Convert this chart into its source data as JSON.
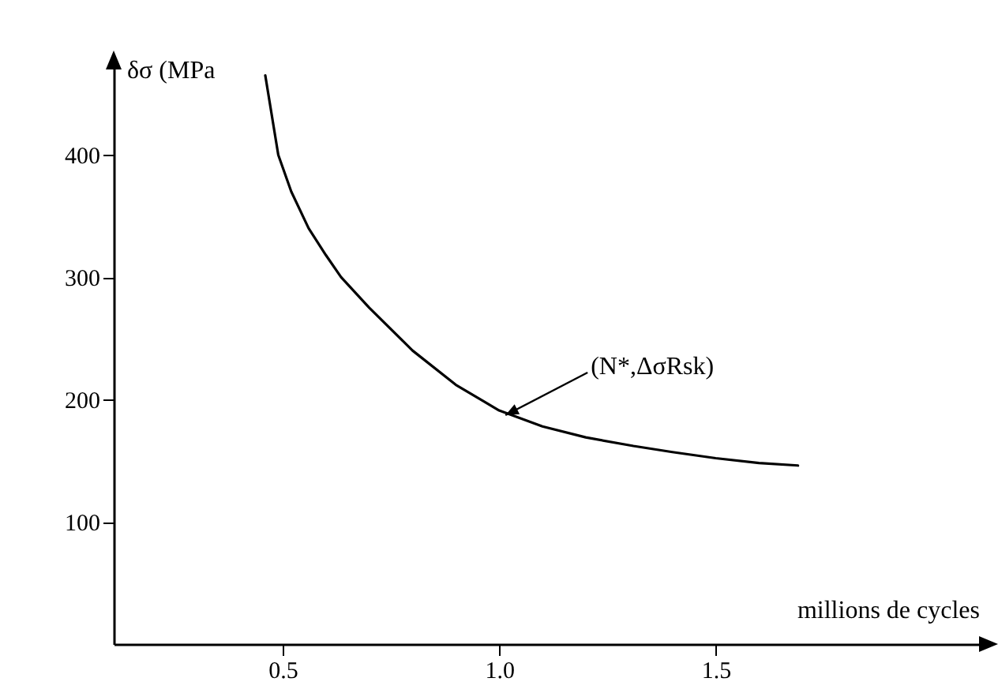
{
  "chart_data": {
    "type": "line",
    "xlabel": "millions de cycles",
    "ylabel": "δσ (MPa",
    "x": [
      0.46,
      0.49,
      0.52,
      0.56,
      0.6,
      0.635,
      0.7,
      0.8,
      0.9,
      1.0,
      1.1,
      1.2,
      1.31,
      1.4,
      1.5,
      1.6,
      1.69
    ],
    "series": [
      {
        "color": "#000000",
        "values": [
          465,
          400,
          370,
          340,
          318,
          300,
          275,
          240,
          212,
          191,
          178,
          169,
          162,
          157,
          152,
          148,
          146
        ]
      }
    ],
    "xlim": [
      0.11,
      2.13
    ],
    "ylim": [
      0,
      475
    ],
    "xticks": [
      {
        "value": 0.5,
        "label": "0.5"
      },
      {
        "value": 1.0,
        "label": "1.0"
      },
      {
        "value": 1.5,
        "label": "1.5"
      }
    ],
    "yticks": [
      100,
      200,
      300,
      400
    ],
    "annotations": [
      {
        "text": "(N*,ΔσRsk)",
        "x": 1.0,
        "y": 191
      }
    ],
    "grid": false,
    "marker": "none",
    "line_style": "solid"
  }
}
